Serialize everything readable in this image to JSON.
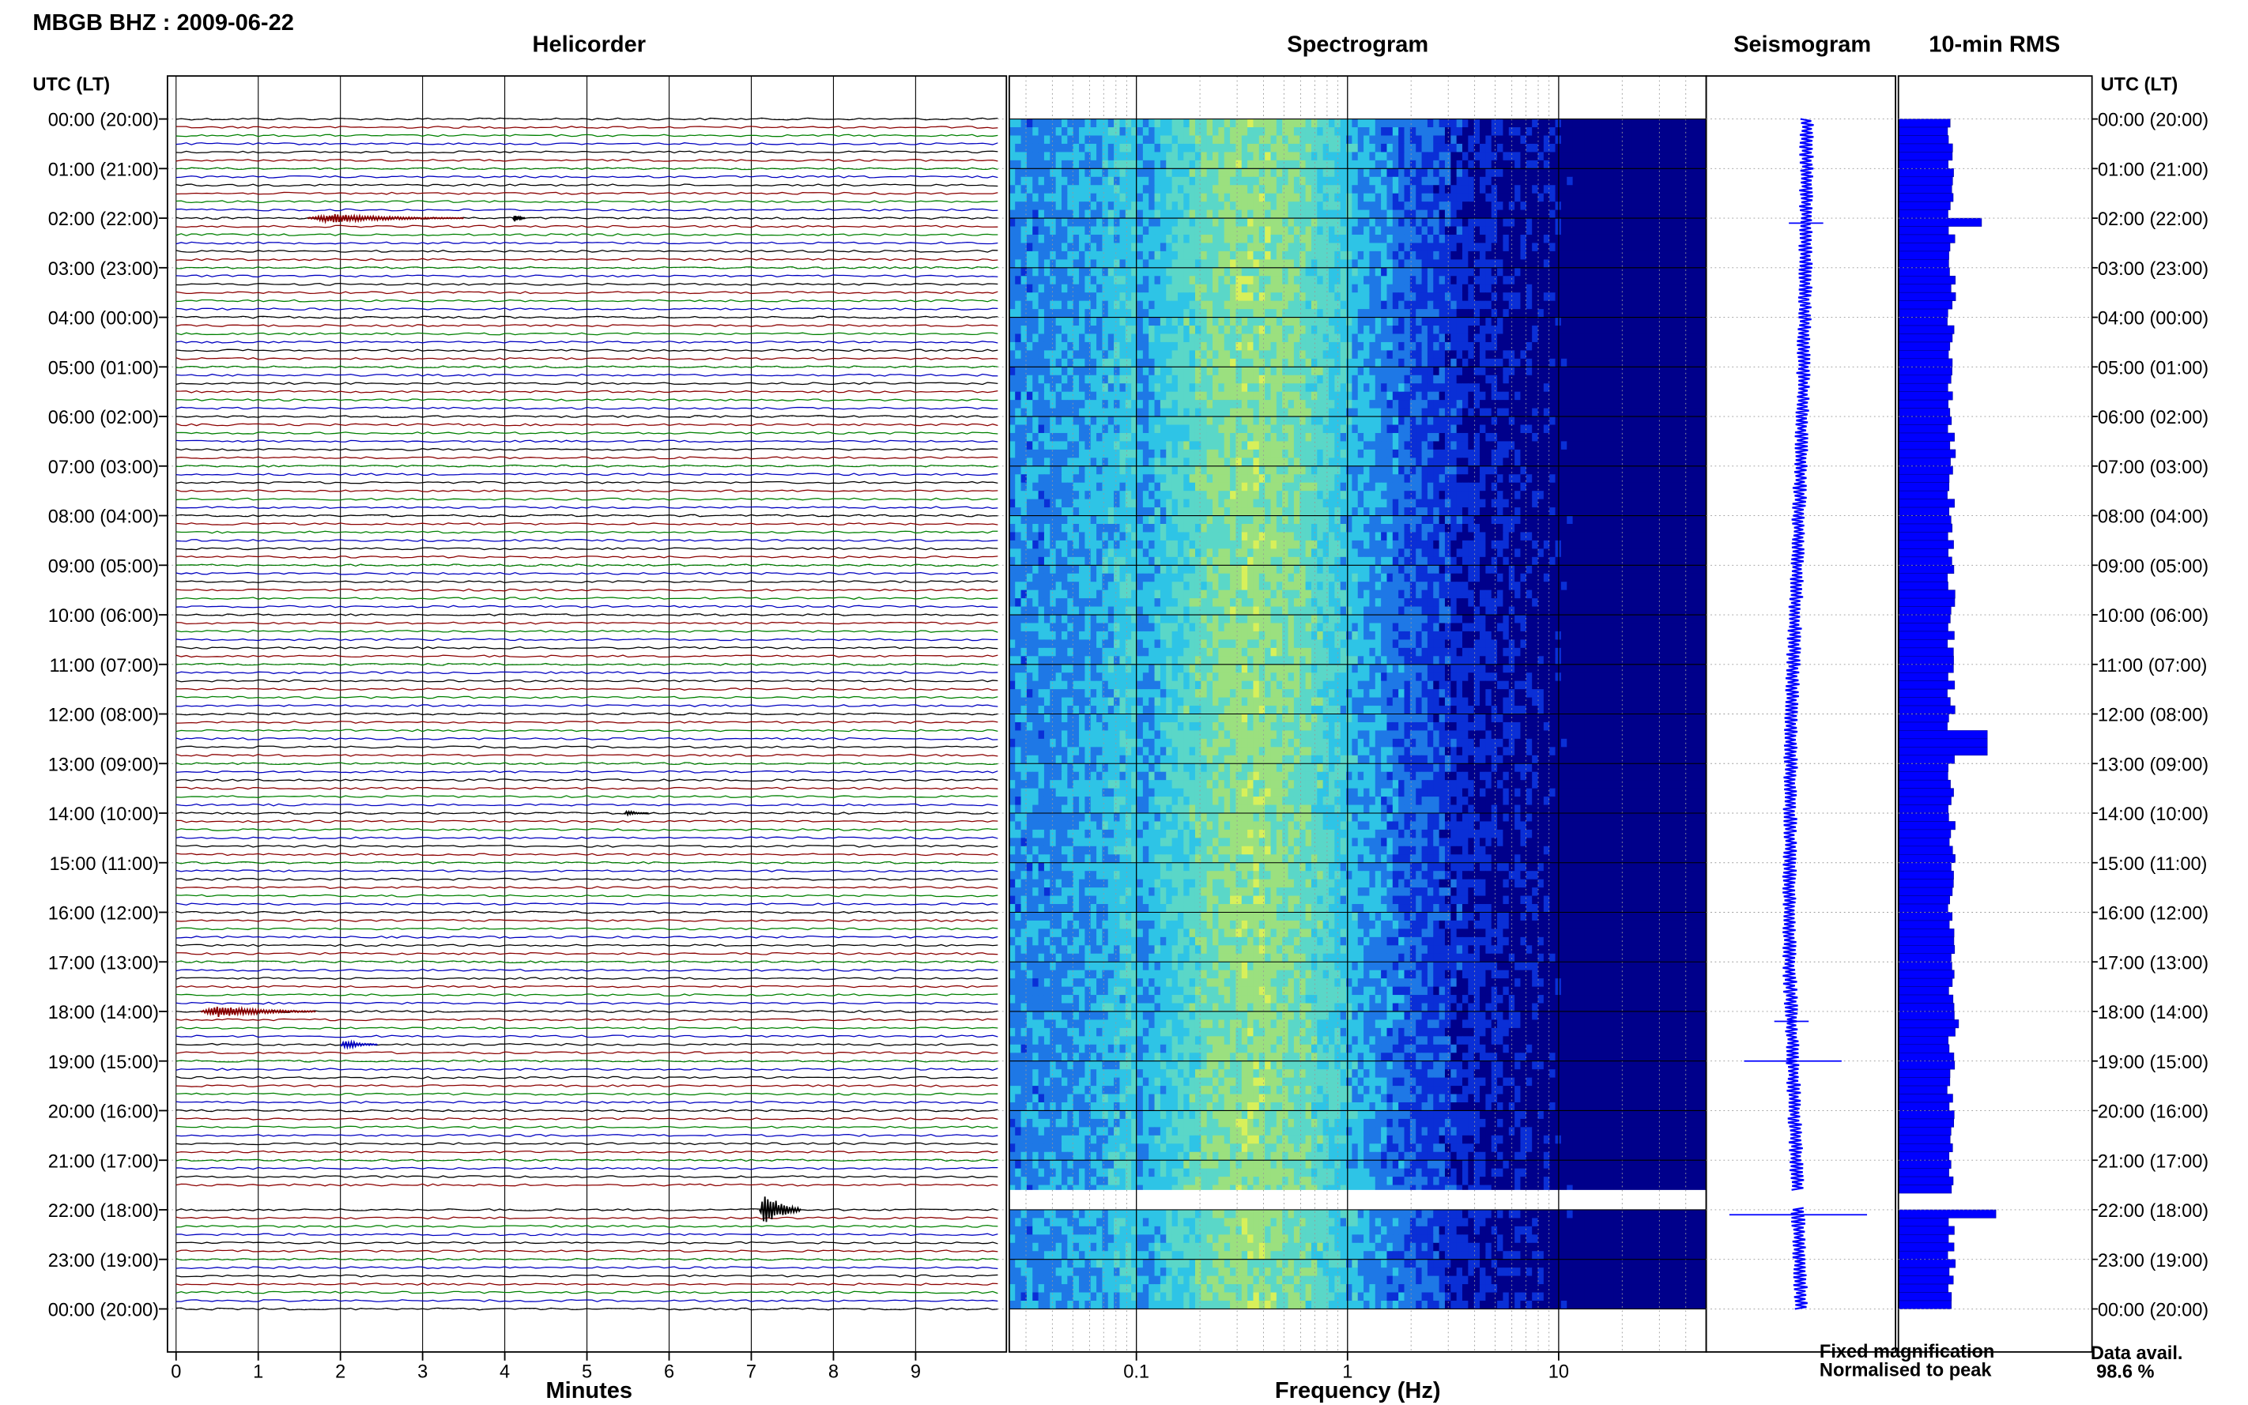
{
  "chart_data": {
    "type": "helicorder",
    "title": "MBGB BHZ : 2009-06-22",
    "panels": {
      "helicorder": {
        "title": "Helicorder",
        "xlabel": "Minutes",
        "xticks": [
          "0",
          "1",
          "2",
          "3",
          "4",
          "5",
          "6",
          "7",
          "8",
          "9"
        ],
        "xlim": [
          0,
          10
        ],
        "trace_colors": [
          "#000000",
          "#8b0000",
          "#008000",
          "#0000c0"
        ],
        "lines_per_hour": 6,
        "events": [
          {
            "row": 12,
            "minute": 1.6,
            "duration": 1.9,
            "amp": 0.55,
            "color": "#8b0000"
          },
          {
            "row": 12,
            "minute": 4.1,
            "duration": 0.15,
            "amp": 0.45,
            "color": "#000000"
          },
          {
            "row": 84,
            "minute": 5.45,
            "duration": 0.3,
            "amp": 0.3,
            "color": "#000000"
          },
          {
            "row": 108,
            "minute": 0.3,
            "duration": 1.4,
            "amp": 0.7,
            "color": "#8b0000"
          },
          {
            "row": 112,
            "minute": 2.0,
            "duration": 0.45,
            "amp": 0.55,
            "color": "#0000c0"
          },
          {
            "row": 132,
            "minute": 7.1,
            "duration": 0.5,
            "amp": 2.4,
            "color": "#000000"
          }
        ]
      },
      "spectrogram": {
        "title": "Spectrogram",
        "xlabel": "Frequency (Hz)",
        "xscale": "log",
        "xlim": [
          0.025,
          50
        ],
        "xticks": [
          "0.1",
          "1",
          "10"
        ],
        "colormap": [
          "#00008b",
          "#0a2fd6",
          "#1e78e6",
          "#2ec4e6",
          "#5ad7c8",
          "#9be07f",
          "#d8f05a"
        ]
      },
      "seismogram": {
        "title": "Seismogram",
        "color": "#0000ff"
      },
      "rms": {
        "title": "10-min RMS",
        "color": "#0000ff",
        "note_blue": "Fixed magnification",
        "note_red": "Normalised to peak",
        "note_red_color": "#ff0000",
        "note_blue_color": "#0000ff"
      }
    },
    "data_gap": {
      "start_hour": 21.6,
      "end_hour": 21.95
    },
    "hour_labels": [
      "00:00 (20:00)",
      "01:00 (21:00)",
      "02:00 (22:00)",
      "03:00 (23:00)",
      "04:00 (00:00)",
      "05:00 (01:00)",
      "06:00 (02:00)",
      "07:00 (03:00)",
      "08:00 (04:00)",
      "09:00 (05:00)",
      "10:00 (06:00)",
      "11:00 (07:00)",
      "12:00 (08:00)",
      "13:00 (09:00)",
      "14:00 (10:00)",
      "15:00 (11:00)",
      "16:00 (12:00)",
      "17:00 (13:00)",
      "18:00 (14:00)",
      "19:00 (15:00)",
      "20:00 (16:00)",
      "21:00 (17:00)",
      "22:00 (18:00)",
      "23:00 (19:00)",
      "00:00 (20:00)"
    ],
    "axis_header_left": "UTC (LT)",
    "axis_header_right": "UTC (LT)",
    "data_avail_label": "Data avail.",
    "data_avail_value": "98.6 %"
  }
}
